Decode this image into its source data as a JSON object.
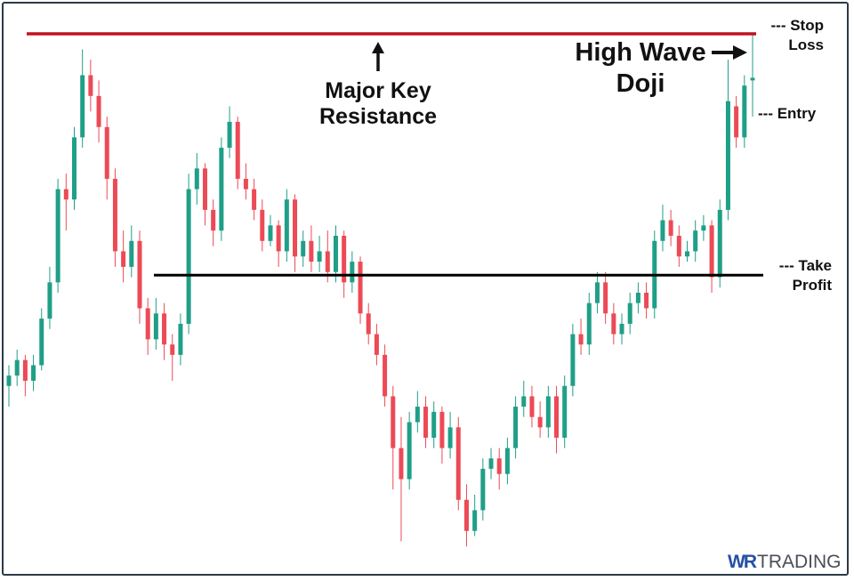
{
  "chart_data": {
    "type": "candlestick",
    "title": "",
    "xlabel": "",
    "ylabel": "",
    "ylim": [
      0,
      100
    ],
    "grid": false,
    "colors": {
      "up": "#1f9f87",
      "down": "#ec4a55",
      "resistance": "#c1121f",
      "support": "#000000"
    },
    "ohlc": [
      [
        32,
        36,
        28,
        34
      ],
      [
        34,
        39,
        32,
        37
      ],
      [
        37,
        38,
        30,
        33
      ],
      [
        33,
        38,
        31,
        36
      ],
      [
        36,
        47,
        35,
        45
      ],
      [
        45,
        55,
        43,
        52
      ],
      [
        52,
        72,
        50,
        70
      ],
      [
        70,
        73,
        62,
        68
      ],
      [
        68,
        82,
        66,
        80
      ],
      [
        80,
        97,
        78,
        92
      ],
      [
        92,
        95,
        85,
        88
      ],
      [
        88,
        91,
        79,
        82
      ],
      [
        82,
        84,
        68,
        72
      ],
      [
        72,
        74,
        55,
        58
      ],
      [
        58,
        62,
        52,
        55
      ],
      [
        55,
        63,
        53,
        60
      ],
      [
        60,
        62,
        44,
        47
      ],
      [
        47,
        49,
        38,
        41
      ],
      [
        41,
        49,
        39,
        46
      ],
      [
        46,
        48,
        37,
        40
      ],
      [
        40,
        42,
        33,
        38
      ],
      [
        38,
        46,
        36,
        44
      ],
      [
        44,
        73,
        42,
        70
      ],
      [
        70,
        77,
        67,
        74
      ],
      [
        74,
        75,
        63,
        66
      ],
      [
        66,
        68,
        59,
        62
      ],
      [
        62,
        80,
        60,
        78
      ],
      [
        78,
        86,
        76,
        83
      ],
      [
        83,
        84,
        70,
        72
      ],
      [
        72,
        75,
        68,
        70
      ],
      [
        70,
        72,
        64,
        66
      ],
      [
        66,
        68,
        58,
        60
      ],
      [
        60,
        65,
        59,
        63
      ],
      [
        63,
        64,
        55,
        58
      ],
      [
        58,
        70,
        56,
        68
      ],
      [
        68,
        69,
        54,
        57
      ],
      [
        57,
        62,
        55,
        60
      ],
      [
        60,
        63,
        54,
        56
      ],
      [
        56,
        61,
        54,
        58
      ],
      [
        58,
        62,
        52,
        54
      ],
      [
        54,
        63,
        52,
        61
      ],
      [
        61,
        62,
        49,
        52
      ],
      [
        52,
        58,
        50,
        56
      ],
      [
        56,
        57,
        44,
        46
      ],
      [
        46,
        48,
        40,
        42
      ],
      [
        42,
        44,
        36,
        38
      ],
      [
        38,
        40,
        28,
        30
      ],
      [
        30,
        32,
        12,
        20
      ],
      [
        20,
        26,
        2,
        14
      ],
      [
        14,
        27,
        12,
        25
      ],
      [
        25,
        31,
        23,
        28
      ],
      [
        28,
        30,
        20,
        22
      ],
      [
        22,
        29,
        20,
        27
      ],
      [
        27,
        28,
        17,
        20
      ],
      [
        20,
        27,
        18,
        24
      ],
      [
        24,
        26,
        8,
        10
      ],
      [
        10,
        13,
        1,
        4
      ],
      [
        4,
        11,
        3,
        8
      ],
      [
        8,
        18,
        6,
        16
      ],
      [
        16,
        20,
        14,
        18
      ],
      [
        18,
        20,
        12,
        15
      ],
      [
        15,
        22,
        13,
        20
      ],
      [
        20,
        30,
        18,
        28
      ],
      [
        28,
        33,
        26,
        30
      ],
      [
        30,
        32,
        24,
        26
      ],
      [
        26,
        29,
        22,
        24
      ],
      [
        24,
        32,
        22,
        30
      ],
      [
        30,
        32,
        19,
        22
      ],
      [
        22,
        34,
        20,
        32
      ],
      [
        32,
        44,
        30,
        42
      ],
      [
        42,
        45,
        38,
        40
      ],
      [
        40,
        50,
        38,
        48
      ],
      [
        48,
        54,
        46,
        52
      ],
      [
        52,
        54,
        44,
        46
      ],
      [
        46,
        48,
        40,
        42
      ],
      [
        42,
        46,
        40,
        44
      ],
      [
        44,
        50,
        42,
        48
      ],
      [
        48,
        52,
        46,
        50
      ],
      [
        50,
        52,
        45,
        47
      ],
      [
        47,
        62,
        45,
        60
      ],
      [
        60,
        67,
        58,
        64
      ],
      [
        64,
        66,
        59,
        61
      ],
      [
        61,
        63,
        55,
        57
      ],
      [
        57,
        60,
        56,
        58
      ],
      [
        58,
        64,
        56,
        62
      ],
      [
        62,
        65,
        60,
        63
      ],
      [
        63,
        64,
        50,
        53
      ],
      [
        53,
        68,
        51,
        66
      ],
      [
        66,
        95,
        64,
        87
      ],
      [
        86,
        88,
        78,
        80
      ],
      [
        80,
        92,
        78,
        90
      ],
      [
        91,
        100,
        84,
        91.5
      ]
    ],
    "levels": {
      "resistance": 100,
      "support": 53.4,
      "stop_loss": 100,
      "entry": 84.8,
      "take_profit": 53.4
    }
  },
  "annotations": {
    "resistance_line1": "Major Key",
    "resistance_line2": "Resistance",
    "pattern_line1": "High Wave",
    "pattern_line2": "Doji",
    "stop_loss_line1": "--- Stop",
    "stop_loss_line2": "Loss",
    "entry": "--- Entry",
    "take_profit_line1": "--- Take",
    "take_profit_line2": "Profit"
  },
  "logo": {
    "part1": "WR",
    "part2": "TRADING"
  }
}
